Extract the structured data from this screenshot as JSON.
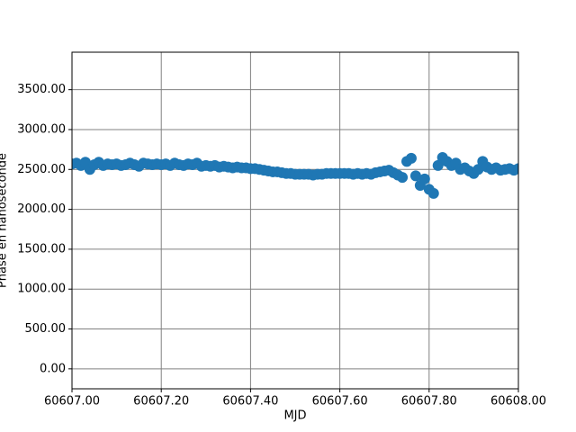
{
  "chart_data": {
    "type": "scatter",
    "x_label": "MJD",
    "y_label": "Phase en nanoseconde",
    "xlim": [
      60607.0,
      60608.0
    ],
    "ylim": [
      -250,
      3970
    ],
    "xticks": [
      {
        "value": 60607.0,
        "label": "60607.00"
      },
      {
        "value": 60607.2,
        "label": "60607.20"
      },
      {
        "value": 60607.4,
        "label": "60607.40"
      },
      {
        "value": 60607.6,
        "label": "60607.60"
      },
      {
        "value": 60607.8,
        "label": "60607.80"
      },
      {
        "value": 60608.0,
        "label": "60608.00"
      }
    ],
    "yticks": [
      {
        "value": 0,
        "label": "0.00"
      },
      {
        "value": 500,
        "label": "500.00"
      },
      {
        "value": 1000,
        "label": "1000.00"
      },
      {
        "value": 1500,
        "label": "1500.00"
      },
      {
        "value": 2000,
        "label": "2000.00"
      },
      {
        "value": 2500,
        "label": "2500.00"
      },
      {
        "value": 3000,
        "label": "3000.00"
      },
      {
        "value": 3500,
        "label": "3500.00"
      }
    ],
    "grid": true,
    "color": "#1f77b4",
    "x": [
      60607.0,
      60607.01,
      60607.02,
      60607.03,
      60607.04,
      60607.05,
      60607.06,
      60607.07,
      60607.08,
      60607.09,
      60607.1,
      60607.11,
      60607.12,
      60607.13,
      60607.14,
      60607.15,
      60607.16,
      60607.17,
      60607.18,
      60607.19,
      60607.2,
      60607.21,
      60607.22,
      60607.23,
      60607.24,
      60607.25,
      60607.26,
      60607.27,
      60607.28,
      60607.29,
      60607.3,
      60607.31,
      60607.32,
      60607.33,
      60607.34,
      60607.35,
      60607.36,
      60607.37,
      60607.38,
      60607.39,
      60607.4,
      60607.41,
      60607.42,
      60607.43,
      60607.44,
      60607.45,
      60607.46,
      60607.47,
      60607.48,
      60607.49,
      60607.5,
      60607.51,
      60607.52,
      60607.53,
      60607.54,
      60607.55,
      60607.56,
      60607.57,
      60607.58,
      60607.59,
      60607.6,
      60607.61,
      60607.62,
      60607.63,
      60607.64,
      60607.65,
      60607.66,
      60607.67,
      60607.68,
      60607.69,
      60607.7,
      60607.71,
      60607.72,
      60607.73,
      60607.74,
      60607.75,
      60607.76,
      60607.77,
      60607.78,
      60607.79,
      60607.8,
      60607.81,
      60607.82,
      60607.83,
      60607.84,
      60607.85,
      60607.86,
      60607.87,
      60607.88,
      60607.89,
      60607.9,
      60607.91,
      60607.92,
      60607.93,
      60607.94,
      60607.95,
      60607.96,
      60607.97,
      60607.98,
      60607.99,
      60608.0
    ],
    "values": [
      2570,
      2580,
      2550,
      2590,
      2500,
      2560,
      2590,
      2550,
      2570,
      2560,
      2570,
      2550,
      2560,
      2580,
      2560,
      2540,
      2580,
      2570,
      2560,
      2570,
      2560,
      2570,
      2550,
      2580,
      2560,
      2550,
      2570,
      2560,
      2580,
      2540,
      2550,
      2540,
      2550,
      2530,
      2540,
      2530,
      2520,
      2530,
      2520,
      2520,
      2510,
      2510,
      2500,
      2490,
      2480,
      2470,
      2470,
      2460,
      2450,
      2450,
      2440,
      2440,
      2440,
      2440,
      2430,
      2440,
      2440,
      2450,
      2450,
      2450,
      2450,
      2450,
      2450,
      2440,
      2450,
      2440,
      2450,
      2440,
      2460,
      2470,
      2480,
      2490,
      2460,
      2430,
      2400,
      2600,
      2640,
      2420,
      2300,
      2380,
      2250,
      2200,
      2550,
      2650,
      2600,
      2550,
      2580,
      2500,
      2520,
      2480,
      2450,
      2500,
      2600,
      2530,
      2500,
      2520,
      2490,
      2500,
      2510,
      2490,
      2510
    ]
  }
}
